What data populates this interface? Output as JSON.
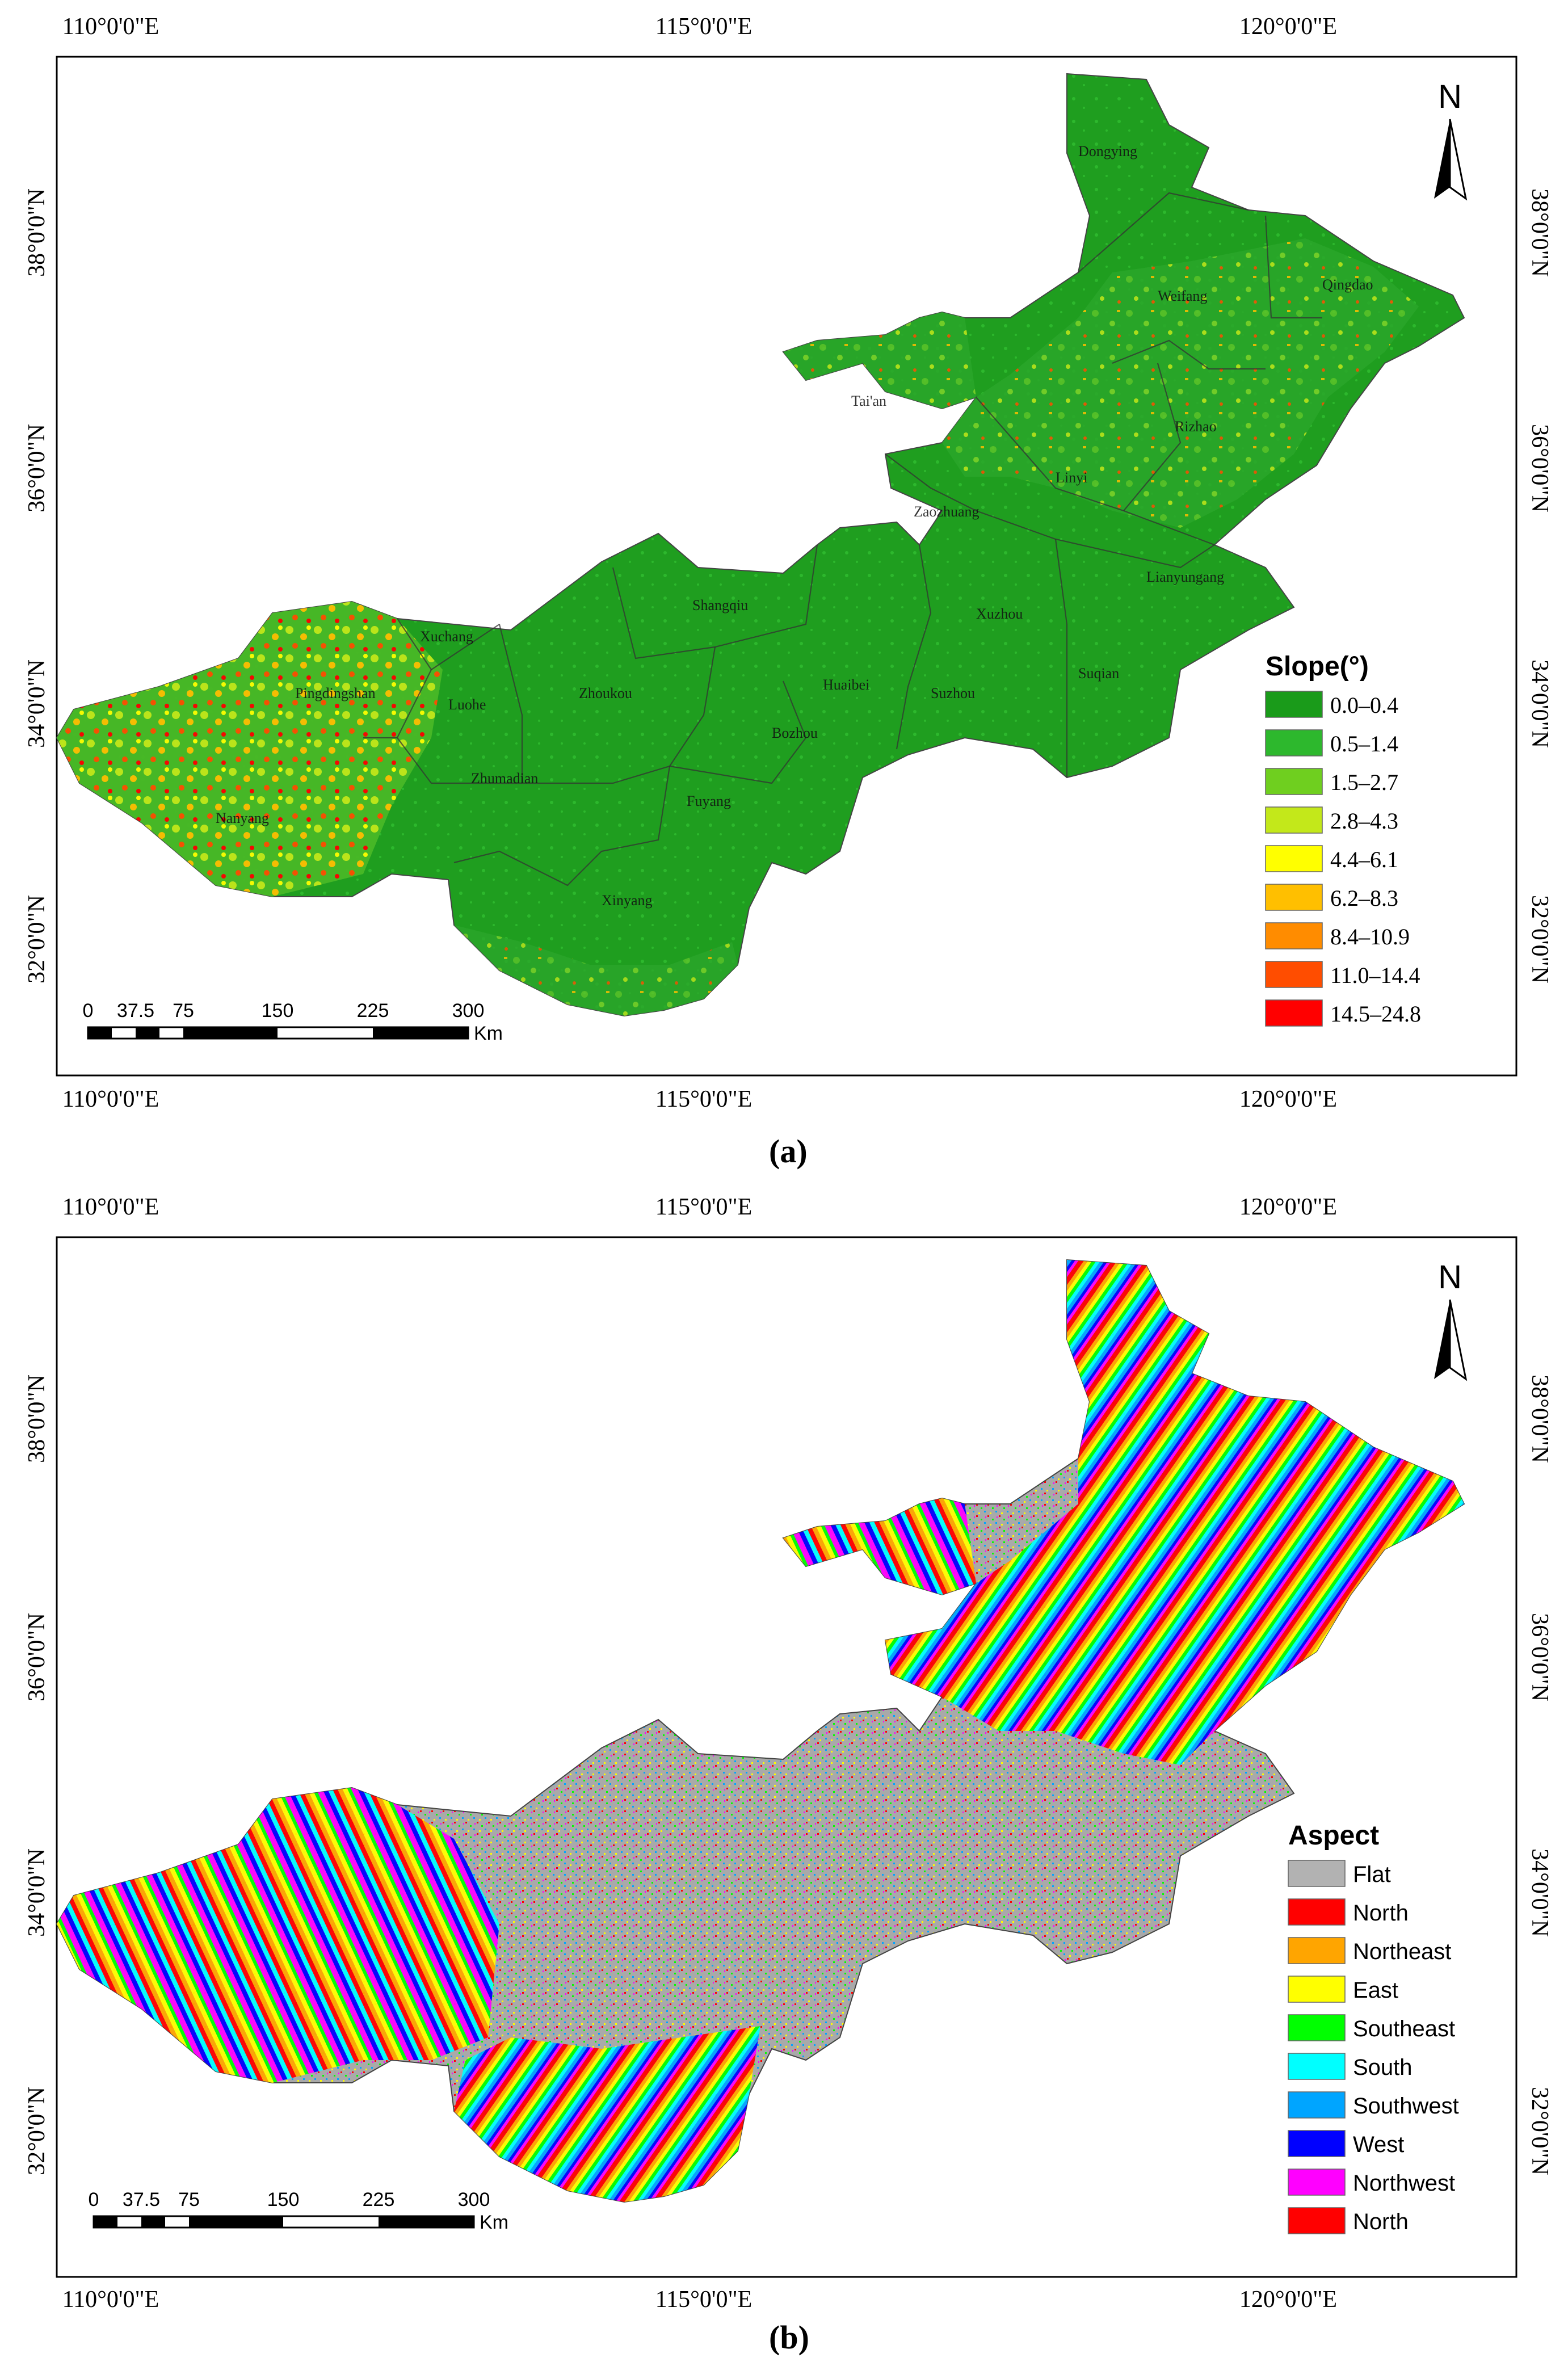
{
  "panel_a": {
    "caption": "(a)",
    "x_ticks": [
      "110°0'0\"E",
      "115°0'0\"E",
      "120°0'0\"E"
    ],
    "y_ticks": [
      "38°0'0\"N",
      "36°0'0\"N",
      "34°0'0\"N",
      "32°0'0\"N"
    ],
    "north": "N",
    "scale": {
      "labels": [
        "0",
        "37.5",
        "75",
        "150",
        "225",
        "300"
      ],
      "unit": "Km"
    },
    "legend": {
      "title": "Slope(°)",
      "items": [
        {
          "label": "0.0–0.4",
          "color": "#1a9b1a"
        },
        {
          "label": "0.5–1.4",
          "color": "#2db82d"
        },
        {
          "label": "1.5–2.7",
          "color": "#6fcf1f"
        },
        {
          "label": "2.8–4.3",
          "color": "#c3e81a"
        },
        {
          "label": "4.4–6.1",
          "color": "#ffff00"
        },
        {
          "label": "6.2–8.3",
          "color": "#ffbf00"
        },
        {
          "label": "8.4–10.9",
          "color": "#ff8c00"
        },
        {
          "label": "11.0–14.4",
          "color": "#ff4d00"
        },
        {
          "label": "14.5–24.8",
          "color": "#ff0000"
        }
      ]
    },
    "cities": [
      "Dongying",
      "Weifang",
      "Qingdao",
      "Tai'an",
      "Rizhao",
      "Linyi",
      "Zaozhuang",
      "Lianyungang",
      "Shangqiu",
      "Xuzhou",
      "Xuchang",
      "Pingdingshan",
      "Luohe",
      "Zhoukou",
      "Huaibei",
      "Suzhou",
      "Suqian",
      "Bozhou",
      "Zhumadian",
      "Fuyang",
      "Nanyang",
      "Xinyang"
    ]
  },
  "panel_b": {
    "caption": "(b)",
    "x_ticks": [
      "110°0'0\"E",
      "115°0'0\"E",
      "120°0'0\"E"
    ],
    "y_ticks": [
      "38°0'0\"N",
      "36°0'0\"N",
      "34°0'0\"N",
      "32°0'0\"N"
    ],
    "north": "N",
    "scale": {
      "labels": [
        "0",
        "37.5",
        "75",
        "150",
        "225",
        "300"
      ],
      "unit": "Km"
    },
    "legend": {
      "title": "Aspect",
      "items": [
        {
          "label": "Flat",
          "color": "#b2b2b2"
        },
        {
          "label": "North",
          "color": "#ff0000"
        },
        {
          "label": "Northeast",
          "color": "#ffa500"
        },
        {
          "label": "East",
          "color": "#ffff00"
        },
        {
          "label": "Southeast",
          "color": "#00ff00"
        },
        {
          "label": "South",
          "color": "#00ffff"
        },
        {
          "label": "Southwest",
          "color": "#00a5ff"
        },
        {
          "label": "West",
          "color": "#0000ff"
        },
        {
          "label": "Northwest",
          "color": "#ff00ff"
        },
        {
          "label": "North",
          "color": "#ff0000"
        }
      ]
    }
  }
}
